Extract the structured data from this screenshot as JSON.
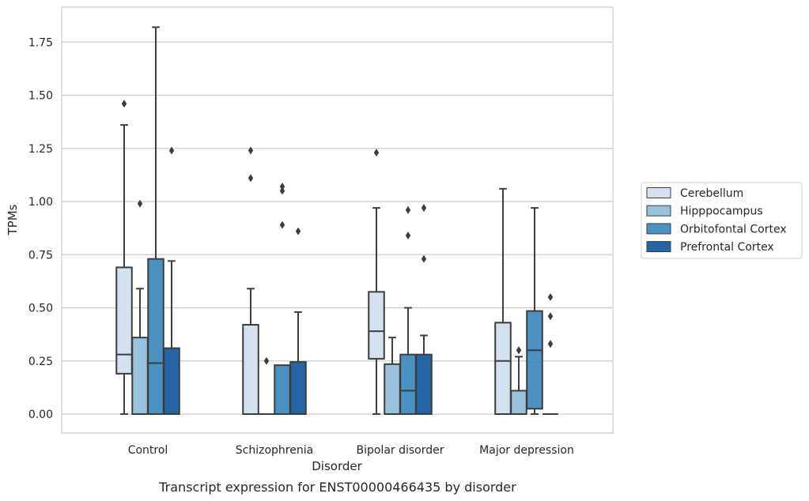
{
  "chart_data": {
    "type": "boxplot",
    "title": "Transcript expression for ENST00000466435 by disorder",
    "xlabel": "Disorder",
    "ylabel": "TPMs",
    "ylim": [
      -0.09,
      1.92
    ],
    "yticks": [
      "0.00",
      "0.25",
      "0.50",
      "0.75",
      "1.00",
      "1.25",
      "1.50",
      "1.75"
    ],
    "grid": "horizontal",
    "legend_position": "right",
    "categories": [
      "Control",
      "Schizophrenia",
      "Bipolar disorder",
      "Major depression"
    ],
    "series": [
      {
        "name": "Cerebellum",
        "color": "#d3e1f0",
        "boxes": [
          {
            "whislo": 0.0,
            "q1": 0.19,
            "med": 0.28,
            "q3": 0.69,
            "whishi": 1.36,
            "fliers": [
              1.46
            ]
          },
          {
            "whislo": 0.0,
            "q1": 0.0,
            "med": 0.0,
            "q3": 0.42,
            "whishi": 0.59,
            "fliers": [
              1.24,
              1.11
            ]
          },
          {
            "whislo": 0.0,
            "q1": 0.26,
            "med": 0.39,
            "q3": 0.575,
            "whishi": 0.97,
            "fliers": [
              1.23
            ]
          },
          {
            "whislo": 0.0,
            "q1": 0.0,
            "med": 0.25,
            "q3": 0.43,
            "whishi": 1.06,
            "fliers": []
          }
        ]
      },
      {
        "name": "Hipppocampus",
        "color": "#99c3dd",
        "boxes": [
          {
            "whislo": 0.0,
            "q1": 0.0,
            "med": 0.0,
            "q3": 0.36,
            "whishi": 0.59,
            "fliers": [
              0.99
            ]
          },
          {
            "whislo": 0.0,
            "q1": 0.0,
            "med": 0.0,
            "q3": 0.0,
            "whishi": 0.0,
            "fliers": [
              0.25
            ]
          },
          {
            "whislo": 0.0,
            "q1": 0.0,
            "med": 0.0,
            "q3": 0.235,
            "whishi": 0.36,
            "fliers": []
          },
          {
            "whislo": 0.0,
            "q1": 0.0,
            "med": 0.0,
            "q3": 0.11,
            "whishi": 0.27,
            "fliers": [
              0.3
            ]
          }
        ]
      },
      {
        "name": "Orbitofontal Cortex",
        "color": "#4b91c2",
        "boxes": [
          {
            "whislo": 0.0,
            "q1": 0.0,
            "med": 0.24,
            "q3": 0.73,
            "whishi": 1.82,
            "fliers": []
          },
          {
            "whislo": 0.0,
            "q1": 0.0,
            "med": 0.0,
            "q3": 0.23,
            "whishi": 0.23,
            "fliers": [
              1.07,
              1.05,
              0.89
            ]
          },
          {
            "whislo": 0.0,
            "q1": 0.0,
            "med": 0.11,
            "q3": 0.28,
            "whishi": 0.5,
            "fliers": [
              0.96,
              0.84
            ]
          },
          {
            "whislo": 0.0,
            "q1": 0.025,
            "med": 0.3,
            "q3": 0.485,
            "whishi": 0.97,
            "fliers": []
          }
        ]
      },
      {
        "name": "Prefrontal Cortex",
        "color": "#2565a6",
        "boxes": [
          {
            "whislo": 0.0,
            "q1": 0.0,
            "med": 0.0,
            "q3": 0.31,
            "whishi": 0.72,
            "fliers": [
              1.24
            ]
          },
          {
            "whislo": 0.0,
            "q1": 0.0,
            "med": 0.0,
            "q3": 0.245,
            "whishi": 0.48,
            "fliers": [
              0.86
            ]
          },
          {
            "whislo": 0.0,
            "q1": 0.0,
            "med": 0.0,
            "q3": 0.28,
            "whishi": 0.37,
            "fliers": [
              0.97,
              0.73
            ]
          },
          {
            "whislo": 0.0,
            "q1": 0.0,
            "med": 0.0,
            "q3": 0.0,
            "whishi": 0.0,
            "fliers": [
              0.55,
              0.46,
              0.33
            ]
          }
        ]
      }
    ]
  }
}
